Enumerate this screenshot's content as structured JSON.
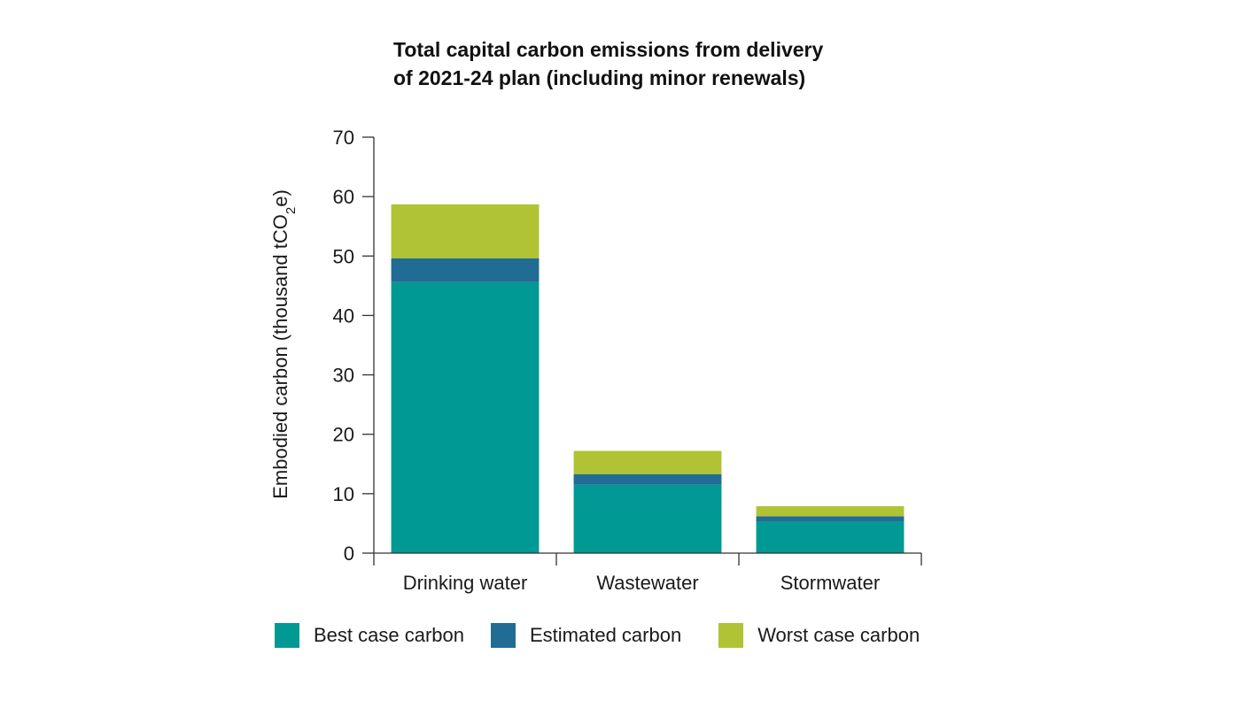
{
  "chart_data": {
    "type": "bar",
    "stacked": true,
    "title_lines": [
      "Total capital carbon emissions from delivery",
      "of 2021-24 plan (including minor renewals)"
    ],
    "xlabel": "",
    "ylabel": {
      "prefix": "Embodied carbon (thousand tCO",
      "subscript": "2",
      "suffix": "e)"
    },
    "ylim": [
      0,
      70
    ],
    "yticks": [
      0,
      10,
      20,
      30,
      40,
      50,
      60,
      70
    ],
    "categories": [
      "Drinking water",
      "Wastewater",
      "Stormwater"
    ],
    "series": [
      {
        "name": "Best case carbon",
        "color": "#009994",
        "values": [
          45.6,
          11.5,
          5.3
        ]
      },
      {
        "name": "Estimated carbon",
        "color": "#206c94",
        "values": [
          4.0,
          1.8,
          0.9
        ]
      },
      {
        "name": "Worst case carbon",
        "color": "#b0c334",
        "values": [
          9.1,
          3.9,
          1.7
        ]
      }
    ],
    "legend_position": "bottom",
    "grid": false
  }
}
